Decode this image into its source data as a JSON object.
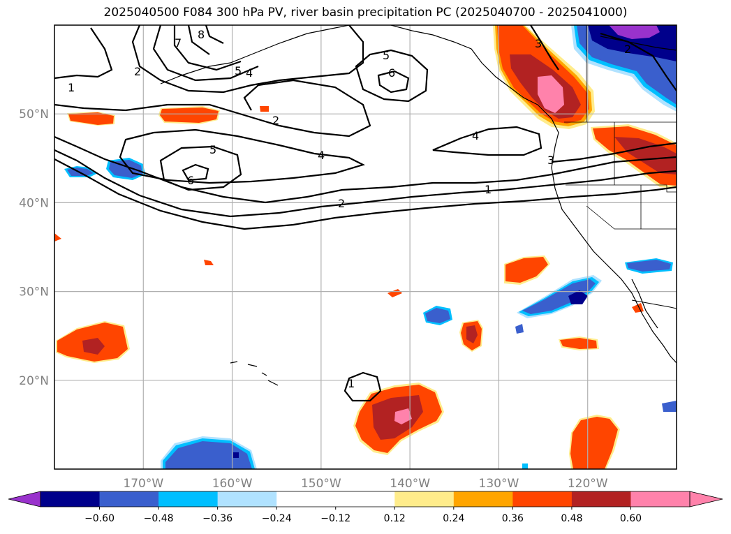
{
  "title": "2025040500 F084 300 hPa PV, river basin precipitation PC (2025040700 - 2025041000)",
  "map": {
    "projection": "PlateCarree",
    "lon_range": [
      -180,
      -110
    ],
    "lat_range": [
      10,
      60
    ],
    "gridlines": true,
    "lat_ticks": [
      {
        "value": 50,
        "label": "50°N"
      },
      {
        "value": 40,
        "label": "40°N"
      },
      {
        "value": 30,
        "label": "30°N"
      },
      {
        "value": 20,
        "label": "20°N"
      }
    ],
    "lon_ticks": [
      {
        "value": -170,
        "label": "170°W"
      },
      {
        "value": -160,
        "label": "160°W"
      },
      {
        "value": -150,
        "label": "150°W"
      },
      {
        "value": -140,
        "label": "140°W"
      },
      {
        "value": -130,
        "label": "130°W"
      },
      {
        "value": -120,
        "label": "120°W"
      }
    ]
  },
  "pv_contour_labels": [
    "1",
    "2",
    "3",
    "4",
    "5",
    "6",
    "7",
    "8"
  ],
  "colorbar": {
    "orientation": "horizontal",
    "extend": "both",
    "colors": [
      "#9932cc",
      "#00008b",
      "#3a5fcd",
      "#00bfff",
      "#b0e2ff",
      "#ffffff",
      "#ffec8b",
      "#ffa500",
      "#ff4500",
      "#b22222",
      "#ff82ab",
      "#ff82ab"
    ],
    "under_color": "#9932cc",
    "over_color": "#ff82ab",
    "bin_colors": [
      "#00008b",
      "#3a5fcd",
      "#00bfff",
      "#b0e2ff",
      "#ffffff",
      "#ffffff",
      "#ffec8b",
      "#ffa500",
      "#ff4500",
      "#b22222",
      "#ff82ab"
    ],
    "tick_labels": [
      "−0.60",
      "−0.48",
      "−0.36",
      "−0.24",
      "−0.12",
      "0.12",
      "0.24",
      "0.36",
      "0.48",
      "0.60"
    ]
  }
}
